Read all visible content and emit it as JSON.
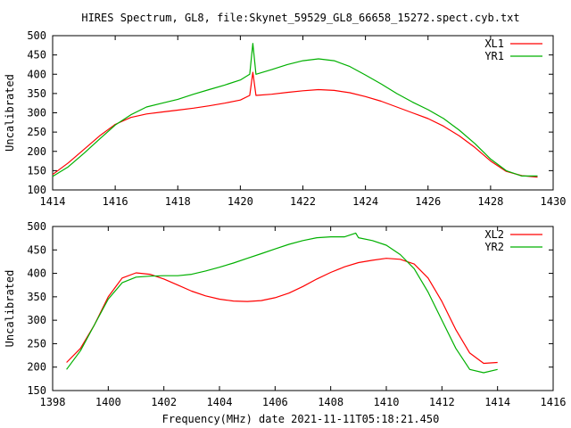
{
  "figure": {
    "title": "HIRES Spectrum, GL8, file:Skynet_59529_GL8_66658_15272.spect.cyb.txt",
    "xlabel": "Frequency(MHz) date 2021-11-11T05:18:21.450"
  },
  "colors": {
    "red": "#ff0000",
    "green": "#00b000",
    "axis": "#000000",
    "background": "#ffffff"
  },
  "chart_data": [
    {
      "type": "line",
      "xlabel": "",
      "ylabel": "Uncalibrated",
      "xlim": [
        1414,
        1430
      ],
      "ylim": [
        100,
        500
      ],
      "xticks": [
        1414,
        1416,
        1418,
        1420,
        1422,
        1424,
        1426,
        1428,
        1430
      ],
      "yticks": [
        100,
        150,
        200,
        250,
        300,
        350,
        400,
        450,
        500
      ],
      "legend": "top-right",
      "grid": false,
      "series": [
        {
          "name": "XL1",
          "color": "#ff0000",
          "x": [
            1414.0,
            1414.5,
            1415.0,
            1415.5,
            1416.0,
            1416.5,
            1417.0,
            1417.5,
            1418.0,
            1418.5,
            1419.0,
            1419.5,
            1420.0,
            1420.3,
            1420.4,
            1420.5,
            1421.0,
            1421.5,
            1422.0,
            1422.5,
            1423.0,
            1423.5,
            1424.0,
            1424.5,
            1425.0,
            1425.5,
            1426.0,
            1426.5,
            1427.0,
            1427.5,
            1428.0,
            1428.5,
            1429.0,
            1429.5
          ],
          "y": [
            140,
            170,
            205,
            240,
            270,
            288,
            297,
            302,
            307,
            312,
            318,
            325,
            333,
            345,
            405,
            345,
            348,
            353,
            357,
            360,
            358,
            352,
            342,
            330,
            315,
            300,
            285,
            265,
            240,
            210,
            175,
            148,
            137,
            133
          ]
        },
        {
          "name": "YR1",
          "color": "#00b000",
          "x": [
            1414.0,
            1414.5,
            1415.0,
            1415.5,
            1416.0,
            1416.5,
            1417.0,
            1417.5,
            1418.0,
            1418.5,
            1419.0,
            1419.5,
            1420.0,
            1420.3,
            1420.4,
            1420.5,
            1421.0,
            1421.5,
            1422.0,
            1422.5,
            1423.0,
            1423.5,
            1424.0,
            1424.5,
            1425.0,
            1425.5,
            1426.0,
            1426.5,
            1427.0,
            1427.5,
            1428.0,
            1428.5,
            1429.0,
            1429.5
          ],
          "y": [
            135,
            160,
            195,
            232,
            268,
            295,
            315,
            325,
            335,
            348,
            360,
            372,
            385,
            400,
            480,
            400,
            412,
            425,
            435,
            440,
            435,
            420,
            398,
            375,
            350,
            328,
            308,
            285,
            255,
            220,
            180,
            150,
            136,
            136
          ]
        }
      ]
    },
    {
      "type": "line",
      "xlabel": "Frequency(MHz) date 2021-11-11T05:18:21.450",
      "ylabel": "Uncalibrated",
      "xlim": [
        1398,
        1416
      ],
      "ylim": [
        150,
        500
      ],
      "xticks": [
        1398,
        1400,
        1402,
        1404,
        1406,
        1408,
        1410,
        1412,
        1414,
        1416
      ],
      "yticks": [
        150,
        200,
        250,
        300,
        350,
        400,
        450,
        500
      ],
      "legend": "top-right",
      "grid": false,
      "series": [
        {
          "name": "XL2",
          "color": "#ff0000",
          "x": [
            1398.5,
            1399.0,
            1399.5,
            1400.0,
            1400.5,
            1401.0,
            1401.5,
            1402.0,
            1402.5,
            1403.0,
            1403.5,
            1404.0,
            1404.5,
            1405.0,
            1405.5,
            1406.0,
            1406.5,
            1407.0,
            1407.5,
            1408.0,
            1408.5,
            1409.0,
            1409.5,
            1410.0,
            1410.5,
            1411.0,
            1411.5,
            1412.0,
            1412.5,
            1413.0,
            1413.5,
            1414.0
          ],
          "y": [
            210,
            240,
            290,
            350,
            390,
            401,
            398,
            388,
            375,
            362,
            352,
            345,
            341,
            340,
            342,
            348,
            358,
            372,
            388,
            402,
            414,
            423,
            428,
            432,
            430,
            420,
            390,
            340,
            280,
            230,
            208,
            210
          ]
        },
        {
          "name": "YR2",
          "color": "#00b000",
          "x": [
            1398.5,
            1399.0,
            1399.5,
            1400.0,
            1400.5,
            1401.0,
            1401.5,
            1402.0,
            1402.5,
            1403.0,
            1403.5,
            1404.0,
            1404.5,
            1405.0,
            1405.5,
            1406.0,
            1406.5,
            1407.0,
            1407.5,
            1408.0,
            1408.5,
            1408.9,
            1409.0,
            1409.5,
            1410.0,
            1410.5,
            1411.0,
            1411.5,
            1412.0,
            1412.5,
            1413.0,
            1413.5,
            1414.0
          ],
          "y": [
            195,
            235,
            290,
            345,
            380,
            392,
            394,
            395,
            395,
            398,
            405,
            413,
            422,
            432,
            442,
            452,
            462,
            470,
            476,
            478,
            478,
            486,
            476,
            470,
            460,
            440,
            410,
            360,
            300,
            240,
            195,
            188,
            195
          ]
        }
      ]
    }
  ]
}
